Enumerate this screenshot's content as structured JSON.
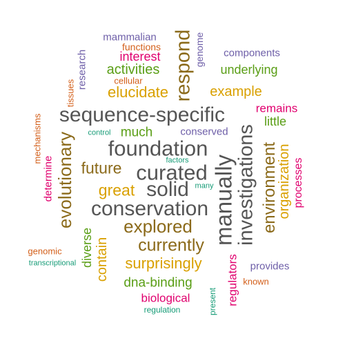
{
  "palette": {
    "gray": "#555555",
    "brown": "#8B6A1A",
    "gold": "#D9A000",
    "green": "#5A9E16",
    "magenta": "#E0006E",
    "purple": "#6E5FA8",
    "orange": "#D35F1A",
    "teal": "#159B76"
  },
  "words": [
    {
      "text": "sequence-specific",
      "color": "gray"
    },
    {
      "text": "foundation",
      "color": "gray"
    },
    {
      "text": "curated",
      "color": "gray"
    },
    {
      "text": "conservation",
      "color": "gray"
    },
    {
      "text": "solid",
      "color": "gray"
    },
    {
      "text": "manually",
      "color": "gray"
    },
    {
      "text": "investigations",
      "color": "gray"
    },
    {
      "text": "respond",
      "color": "brown"
    },
    {
      "text": "explored",
      "color": "brown"
    },
    {
      "text": "currently",
      "color": "brown"
    },
    {
      "text": "future",
      "color": "brown"
    },
    {
      "text": "environment",
      "color": "brown"
    },
    {
      "text": "evolutionary",
      "color": "brown"
    },
    {
      "text": "great",
      "color": "gold"
    },
    {
      "text": "elucidate",
      "color": "gold"
    },
    {
      "text": "example",
      "color": "gold"
    },
    {
      "text": "surprisingly",
      "color": "gold"
    },
    {
      "text": "organization",
      "color": "gold"
    },
    {
      "text": "contain",
      "color": "gold"
    },
    {
      "text": "activities",
      "color": "green"
    },
    {
      "text": "underlying",
      "color": "green"
    },
    {
      "text": "much",
      "color": "green"
    },
    {
      "text": "little",
      "color": "green"
    },
    {
      "text": "dna-binding",
      "color": "green"
    },
    {
      "text": "diverse",
      "color": "green"
    },
    {
      "text": "interest",
      "color": "magenta"
    },
    {
      "text": "remains",
      "color": "magenta"
    },
    {
      "text": "processes",
      "color": "magenta"
    },
    {
      "text": "regulators",
      "color": "magenta"
    },
    {
      "text": "biological",
      "color": "magenta"
    },
    {
      "text": "determine",
      "color": "magenta"
    },
    {
      "text": "mammalian",
      "color": "purple"
    },
    {
      "text": "components",
      "color": "purple"
    },
    {
      "text": "research",
      "color": "purple"
    },
    {
      "text": "genome",
      "color": "purple"
    },
    {
      "text": "conserved",
      "color": "purple"
    },
    {
      "text": "provides",
      "color": "purple"
    },
    {
      "text": "functions",
      "color": "orange"
    },
    {
      "text": "cellular",
      "color": "orange"
    },
    {
      "text": "tissues",
      "color": "orange"
    },
    {
      "text": "mechanisms",
      "color": "orange"
    },
    {
      "text": "genomic",
      "color": "orange"
    },
    {
      "text": "known",
      "color": "orange"
    },
    {
      "text": "control",
      "color": "teal"
    },
    {
      "text": "factors",
      "color": "teal"
    },
    {
      "text": "many",
      "color": "teal"
    },
    {
      "text": "transcriptional",
      "color": "teal"
    },
    {
      "text": "regulation",
      "color": "teal"
    },
    {
      "text": "present",
      "color": "teal"
    }
  ]
}
